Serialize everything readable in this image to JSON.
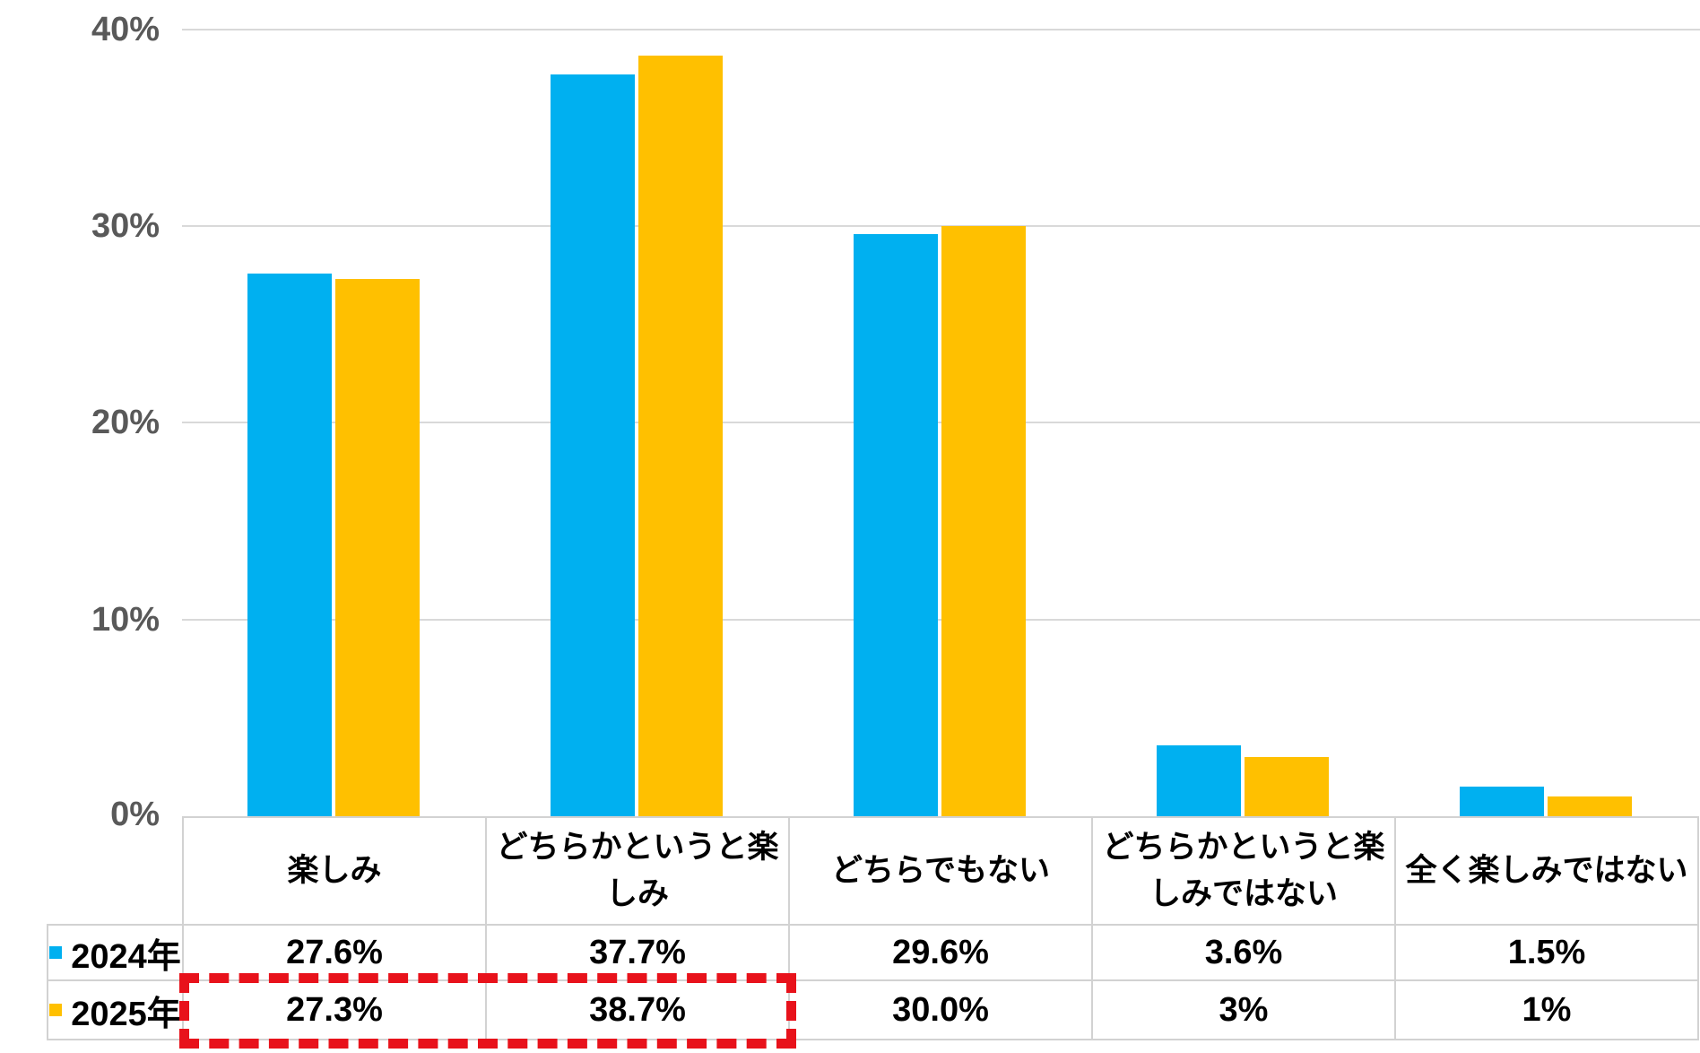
{
  "chart_data": {
    "type": "bar",
    "title": "",
    "categories": [
      "楽しみ",
      "どちらかというと楽しみ",
      "どちらでもない",
      "どちらかというと楽しみではない",
      "全く楽しみではない"
    ],
    "series": [
      {
        "name": "2024年",
        "color": "#00b0f0",
        "values": [
          27.6,
          37.7,
          29.6,
          3.6,
          1.5
        ]
      },
      {
        "name": "2025年",
        "color": "#ffc000",
        "values": [
          27.3,
          38.7,
          30.0,
          3.0,
          1.0
        ]
      }
    ],
    "ylim": [
      0,
      40
    ],
    "ytick_labels": [
      "0%",
      "10%",
      "20%",
      "30%",
      "40%"
    ],
    "grid": true,
    "legend_position": "data-table-left-swatches"
  },
  "y_axis": {
    "tick_40": "40%",
    "tick_30": "30%",
    "tick_20": "20%",
    "tick_10": "10%",
    "tick_0": "0%"
  },
  "data_table": {
    "headers": [
      "楽しみ",
      "どちらかというと楽しみ",
      "どちらでもない",
      "どちらかというと楽しみではない",
      "全く楽しみではない"
    ],
    "rows": [
      {
        "label": "2024年",
        "swatch_color": "#00b0f0",
        "values": [
          "27.6%",
          "37.7%",
          "29.6%",
          "3.6%",
          "1.5%"
        ]
      },
      {
        "label": "2025年",
        "swatch_color": "#ffc000",
        "values": [
          "27.3%",
          "38.7%",
          "30.0%",
          "3%",
          "1%"
        ]
      }
    ]
  },
  "highlight": {
    "color": "#e8121b",
    "style": "dashed-rectangle",
    "around_row": "2025年",
    "around_columns": [
      "楽しみ",
      "どちらかというと楽しみ"
    ]
  },
  "colors": {
    "series_2024": "#00b0f0",
    "series_2025": "#ffc000",
    "highlight_red": "#e8121b",
    "gridline": "#d9d9d9",
    "axis_text": "#595959",
    "table_border": "#d2d2d2",
    "table_text": "#000000",
    "background": "#ffffff"
  }
}
